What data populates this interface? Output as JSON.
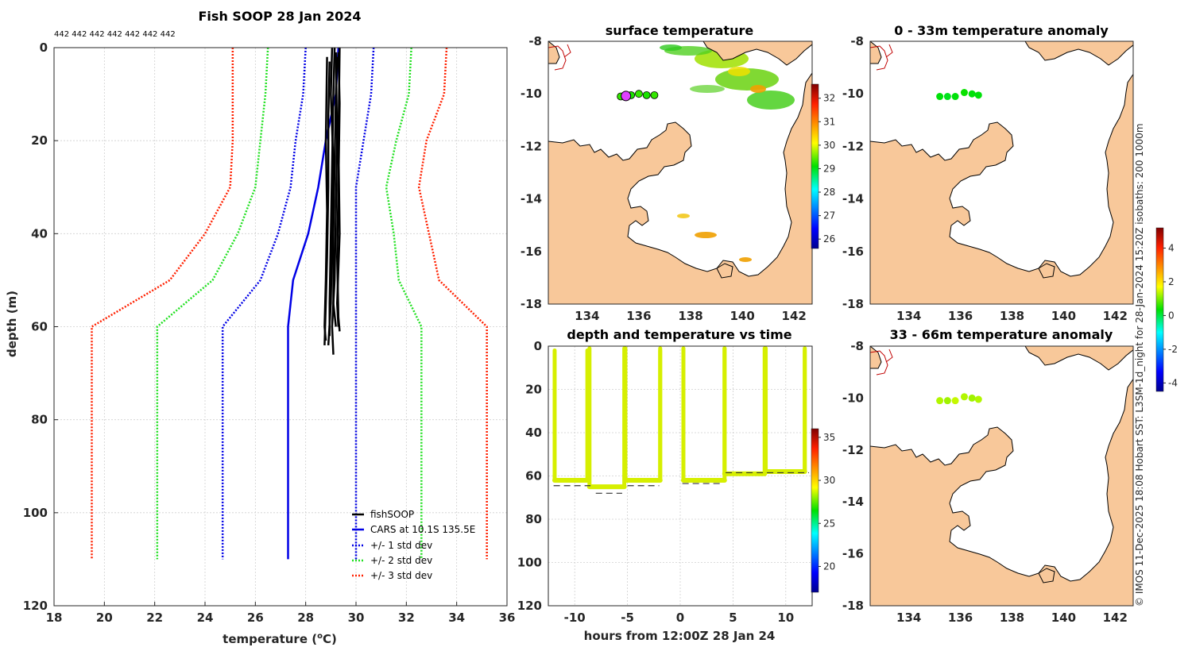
{
  "figure": {
    "title": "Fish SOOP 28 Jan 2024",
    "id_labels": "442 442 442 442 442 442 442",
    "credit": "© IMOS 11-Dec-2025 18:08 Hobart SST: L3SM-1d_night for 28-Jan-2024 15:20Z isobaths: 200  1000m"
  },
  "chart_data": [
    {
      "id": "profile",
      "type": "line",
      "title": "Fish SOOP 28 Jan 2024",
      "xlabel": "temperature (",
      "xlabel_sup": "o",
      "xlabel_end": "C)",
      "ylabel": "depth (m)",
      "xlim": [
        18,
        36
      ],
      "ylim": [
        0,
        120
      ],
      "y_reversed": true,
      "xticks": [
        18,
        20,
        22,
        24,
        26,
        28,
        30,
        32,
        34,
        36
      ],
      "yticks": [
        0,
        20,
        40,
        60,
        80,
        100,
        120
      ],
      "grid": true,
      "legend": [
        "fishSOOP",
        "CARS at 10.1S 135.5E",
        "+/- 1 std dev",
        "+/- 2 std dev",
        "+/- 3 std dev"
      ],
      "legend_position": "bottom-right",
      "depths": [
        0,
        10,
        20,
        30,
        40,
        50,
        60,
        110
      ],
      "cars_mean": [
        29.3,
        29.2,
        28.8,
        28.5,
        28.1,
        27.5,
        27.3,
        27.3
      ],
      "series": [
        {
          "name": "-3 std dev",
          "color": "#ff2000",
          "style": "dotted",
          "values": [
            25.1,
            25.1,
            25.1,
            25.0,
            24.0,
            22.6,
            19.5,
            19.5
          ]
        },
        {
          "name": "-2 std dev",
          "color": "#20e020",
          "style": "dotted",
          "values": [
            26.5,
            26.4,
            26.2,
            26.0,
            25.3,
            24.3,
            22.1,
            22.1
          ]
        },
        {
          "name": "-1 std dev",
          "color": "#0000e6",
          "style": "dotted",
          "values": [
            28.0,
            27.9,
            27.6,
            27.4,
            26.9,
            26.2,
            24.7,
            24.7
          ]
        },
        {
          "name": "+1 std dev",
          "color": "#0000e6",
          "style": "dotted",
          "values": [
            30.7,
            30.6,
            30.3,
            30.0,
            30.0,
            30.0,
            30.0,
            30.0
          ]
        },
        {
          "name": "+2 std dev",
          "color": "#20e020",
          "style": "dotted",
          "values": [
            32.2,
            32.1,
            31.6,
            31.2,
            31.5,
            31.7,
            32.6,
            32.6
          ]
        },
        {
          "name": "+3 std dev",
          "color": "#ff2000",
          "style": "dotted",
          "values": [
            33.6,
            33.5,
            32.8,
            32.5,
            32.9,
            33.3,
            35.2,
            35.2
          ]
        }
      ],
      "fish_profiles": [
        {
          "t": [
            [
              0,
              29.15
            ],
            [
              10,
              29.1
            ],
            [
              25,
              29.05
            ],
            [
              40,
              29.0
            ],
            [
              55,
              28.95
            ],
            [
              62,
              28.95
            ]
          ]
        },
        {
          "t": [
            [
              0,
              29.05
            ],
            [
              10,
              29.0
            ],
            [
              25,
              29.1
            ],
            [
              40,
              29.05
            ],
            [
              55,
              29.0
            ],
            [
              64,
              28.9
            ]
          ]
        },
        {
          "t": [
            [
              2,
              29.25
            ],
            [
              10,
              29.2
            ],
            [
              25,
              29.15
            ],
            [
              40,
              29.1
            ],
            [
              55,
              29.1
            ],
            [
              60,
              29.2
            ]
          ]
        },
        {
          "t": [
            [
              1,
              29.3
            ],
            [
              12,
              29.35
            ],
            [
              30,
              29.3
            ],
            [
              45,
              29.25
            ],
            [
              58,
              29.3
            ],
            [
              61,
              29.35
            ]
          ]
        },
        {
          "t": [
            [
              3,
              28.95
            ],
            [
              15,
              28.9
            ],
            [
              30,
              28.9
            ],
            [
              45,
              28.85
            ],
            [
              55,
              28.8
            ],
            [
              64,
              28.75
            ]
          ]
        },
        {
          "t": [
            [
              2,
              28.85
            ],
            [
              20,
              28.8
            ],
            [
              35,
              28.85
            ],
            [
              50,
              28.8
            ],
            [
              60,
              28.75
            ],
            [
              63,
              28.8
            ]
          ]
        },
        {
          "t": [
            [
              1,
              29.2
            ],
            [
              20,
              29.25
            ],
            [
              35,
              29.2
            ],
            [
              50,
              29.15
            ],
            [
              60,
              29.05
            ],
            [
              66,
              29.1
            ]
          ]
        },
        {
          "t": [
            [
              0,
              29.35
            ],
            [
              20,
              29.3
            ],
            [
              40,
              29.35
            ],
            [
              55,
              29.25
            ],
            [
              60,
              29.3
            ]
          ]
        }
      ]
    },
    {
      "id": "timeseries",
      "type": "scatter",
      "title": "depth and temperature vs time",
      "xlabel": "hours from 12:00Z 28 Jan 24",
      "xlim": [
        -12.5,
        12.5
      ],
      "ylim": [
        0,
        120
      ],
      "y_reversed": true,
      "xticks": [
        -10,
        -5,
        0,
        5,
        10
      ],
      "yticks": [
        0,
        20,
        40,
        60,
        80,
        100,
        120
      ],
      "colorbar": {
        "ticks": [
          20,
          25,
          30,
          35
        ],
        "range": [
          17,
          36
        ]
      },
      "point_color": "#d6ef00",
      "bottom_depth_segments": [
        {
          "x": [
            -12.0,
            -8.5
          ],
          "depth": 64.5
        },
        {
          "x": [
            -8.0,
            -5.5
          ],
          "depth": 68.0
        },
        {
          "x": [
            -5.0,
            -2.0
          ],
          "depth": 64.5
        },
        {
          "x": [
            0.2,
            4.0
          ],
          "depth": 63.5
        },
        {
          "x": [
            4.3,
            12.2
          ],
          "depth": 58.5
        }
      ],
      "casts": [
        {
          "t0": -11.9,
          "t1": -8.8,
          "top": 2,
          "bottom": 62
        },
        {
          "t0": -8.6,
          "t1": -5.3,
          "top": 1,
          "bottom": 65
        },
        {
          "t0": -5.2,
          "t1": -1.9,
          "top": 1,
          "bottom": 62
        },
        {
          "t0": -1.9,
          "t1": -1.9,
          "top": 2,
          "bottom": 62
        },
        {
          "t0": 0.3,
          "t1": 4.2,
          "top": 1,
          "bottom": 62
        },
        {
          "t0": 4.2,
          "t1": 8.0,
          "top": 1,
          "bottom": 59
        },
        {
          "t0": 8.1,
          "t1": 11.8,
          "top": 1,
          "bottom": 58
        },
        {
          "t0": 11.8,
          "t1": 11.8,
          "top": 2,
          "bottom": 58
        }
      ]
    },
    {
      "id": "map-sst",
      "type": "heatmap",
      "title": "surface temperature",
      "xlim": [
        132.5,
        142.7
      ],
      "ylim": [
        -18,
        -8
      ],
      "xticks": [
        134,
        136,
        138,
        140,
        142
      ],
      "yticks": [
        -8,
        -10,
        -12,
        -14,
        -16,
        -18
      ],
      "colorbar": {
        "ticks": [
          26,
          27,
          28,
          29,
          30,
          31,
          32
        ],
        "range": [
          25.6,
          32.6
        ]
      },
      "stations": [
        {
          "lon": 135.3,
          "lat": -10.1,
          "t": 29.3
        },
        {
          "lon": 135.7,
          "lat": -10.05,
          "t": 29.2
        },
        {
          "lon": 136.0,
          "lat": -10.0,
          "t": 29.3
        },
        {
          "lon": 136.3,
          "lat": -10.05,
          "t": 29.2
        },
        {
          "lon": 136.6,
          "lat": -10.05,
          "t": 29.3
        }
      ],
      "highlight_station": {
        "lon": 135.5,
        "lat": -10.08
      }
    },
    {
      "id": "map-anom-0-33",
      "type": "heatmap",
      "title": "0 - 33m temperature anomaly",
      "xlim": [
        132.5,
        142.7
      ],
      "ylim": [
        -18,
        -8
      ],
      "xticks": [
        134,
        136,
        138,
        140,
        142
      ],
      "yticks": [
        -8,
        -10,
        -12,
        -14,
        -16,
        -18
      ],
      "stations": [
        {
          "lon": 135.2,
          "lat": -10.1,
          "t": 0.3
        },
        {
          "lon": 135.5,
          "lat": -10.1,
          "t": 0.2
        },
        {
          "lon": 135.8,
          "lat": -10.1,
          "t": 0.3
        },
        {
          "lon": 136.15,
          "lat": -9.95,
          "t": 0.4
        },
        {
          "lon": 136.45,
          "lat": -10.0,
          "t": 0.3
        },
        {
          "lon": 136.7,
          "lat": -10.05,
          "t": 0.3
        }
      ]
    },
    {
      "id": "map-anom-33-66",
      "type": "heatmap",
      "title": "33 - 66m temperature anomaly",
      "xlim": [
        132.5,
        142.7
      ],
      "ylim": [
        -18,
        -8
      ],
      "xticks": [
        134,
        136,
        138,
        140,
        142
      ],
      "yticks": [
        -8,
        -10,
        -12,
        -14,
        -16,
        -18
      ],
      "colorbar": {
        "ticks": [
          -4,
          -2,
          0,
          2,
          4
        ],
        "range": [
          -4.5,
          5.2
        ]
      },
      "stations": [
        {
          "lon": 135.2,
          "lat": -10.1,
          "t": 1.3
        },
        {
          "lon": 135.5,
          "lat": -10.1,
          "t": 1.2
        },
        {
          "lon": 135.8,
          "lat": -10.1,
          "t": 1.4
        },
        {
          "lon": 136.15,
          "lat": -9.95,
          "t": 1.3
        },
        {
          "lon": 136.45,
          "lat": -10.0,
          "t": 1.2
        },
        {
          "lon": 136.7,
          "lat": -10.05,
          "t": 1.3
        }
      ]
    }
  ]
}
